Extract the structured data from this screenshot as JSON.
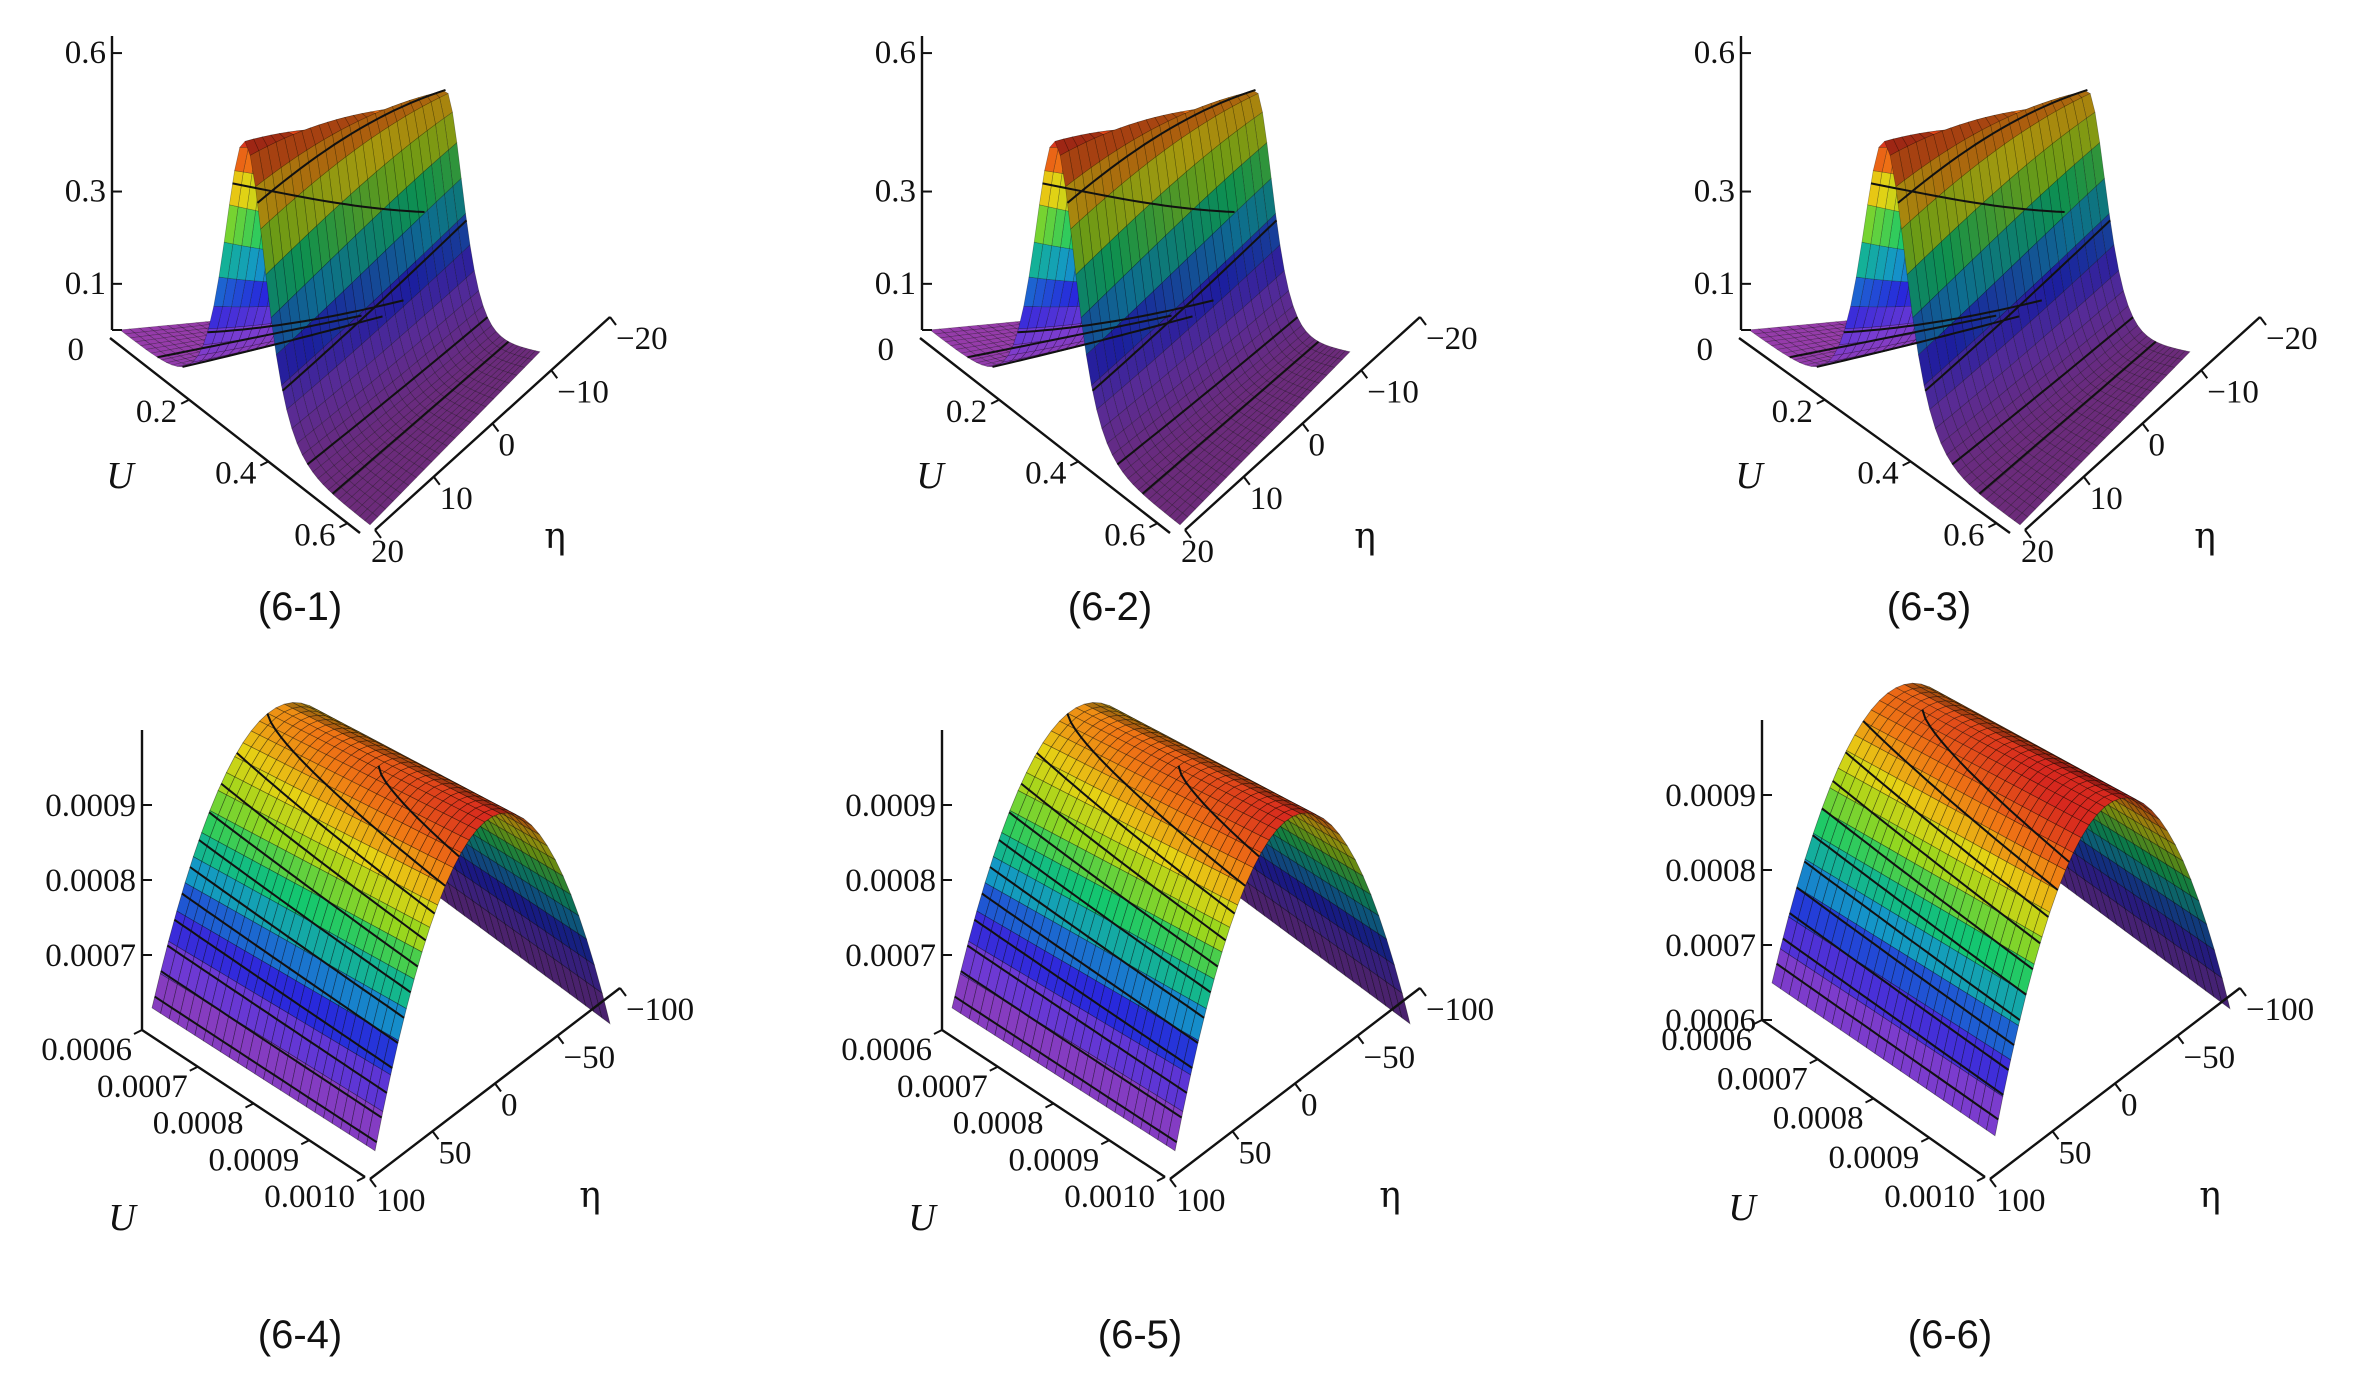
{
  "chart_data": [
    {
      "type": "surface",
      "caption": "(6-1)",
      "zlabel": "",
      "xlabel": "U",
      "ylabel": "η",
      "z_ticks": [
        "0",
        "0.1",
        "0.3",
        "0.6"
      ],
      "u_ticks": [
        "0.2",
        "0.4",
        "0.6"
      ],
      "eta_ticks": [
        "20",
        "10",
        "0",
        "−10",
        "−20"
      ],
      "eta_range": [
        -20,
        20
      ],
      "z_range": [
        0,
        0.65
      ],
      "profile": "narrow",
      "colormap": "rainbow"
    },
    {
      "type": "surface",
      "caption": "(6-2)",
      "zlabel": "",
      "xlabel": "U",
      "ylabel": "η",
      "z_ticks": [
        "0",
        "0.1",
        "0.3",
        "0.6"
      ],
      "u_ticks": [
        "0.2",
        "0.4",
        "0.6"
      ],
      "eta_ticks": [
        "20",
        "10",
        "0",
        "−10",
        "−20"
      ],
      "eta_range": [
        -20,
        20
      ],
      "z_range": [
        0,
        0.65
      ],
      "profile": "narrow",
      "colormap": "rainbow"
    },
    {
      "type": "surface",
      "caption": "(6-3)",
      "zlabel": "",
      "xlabel": "U",
      "ylabel": "η",
      "z_ticks": [
        "0",
        "0.1",
        "0.3",
        "0.6"
      ],
      "u_ticks": [
        "0.2",
        "0.4",
        "0.6"
      ],
      "eta_ticks": [
        "20",
        "10",
        "0",
        "−10",
        "−20"
      ],
      "eta_range": [
        -20,
        20
      ],
      "z_range": [
        0,
        0.65
      ],
      "profile": "narrow",
      "colormap": "rainbow"
    },
    {
      "type": "surface",
      "caption": "(6-4)",
      "zlabel": "",
      "xlabel": "U",
      "ylabel": "η",
      "z_ticks": [
        "0.0007",
        "0.0008",
        "0.0009"
      ],
      "u_ticks": [
        "0.0006",
        "0.0007",
        "0.0008",
        "0.0009",
        "0.0010"
      ],
      "eta_ticks": [
        "100",
        "50",
        "0",
        "−50",
        "−100"
      ],
      "eta_range": [
        -100,
        100
      ],
      "z_range": [
        0.0006,
        0.001
      ],
      "profile": "wide",
      "colormap": "rainbow"
    },
    {
      "type": "surface",
      "caption": "(6-5)",
      "zlabel": "",
      "xlabel": "U",
      "ylabel": "η",
      "z_ticks": [
        "0.0007",
        "0.0008",
        "0.0009"
      ],
      "u_ticks": [
        "0.0006",
        "0.0007",
        "0.0008",
        "0.0009",
        "0.0010"
      ],
      "eta_ticks": [
        "100",
        "50",
        "0",
        "−50",
        "−100"
      ],
      "eta_range": [
        -100,
        100
      ],
      "z_range": [
        0.0006,
        0.001
      ],
      "profile": "wide",
      "colormap": "rainbow"
    },
    {
      "type": "surface",
      "caption": "(6-6)",
      "zlabel": "",
      "xlabel": "U",
      "ylabel": "η",
      "z_ticks": [
        "0.0006",
        "0.0007",
        "0.0008",
        "0.0009"
      ],
      "u_ticks": [
        "0.0006",
        "0.0007",
        "0.0008",
        "0.0009",
        "0.0010"
      ],
      "eta_ticks": [
        "100",
        "50",
        "0",
        "−50",
        "−100"
      ],
      "eta_range": [
        -100,
        100
      ],
      "z_range": [
        0.0006,
        0.001
      ],
      "profile": "wide",
      "colormap": "rainbow"
    }
  ]
}
